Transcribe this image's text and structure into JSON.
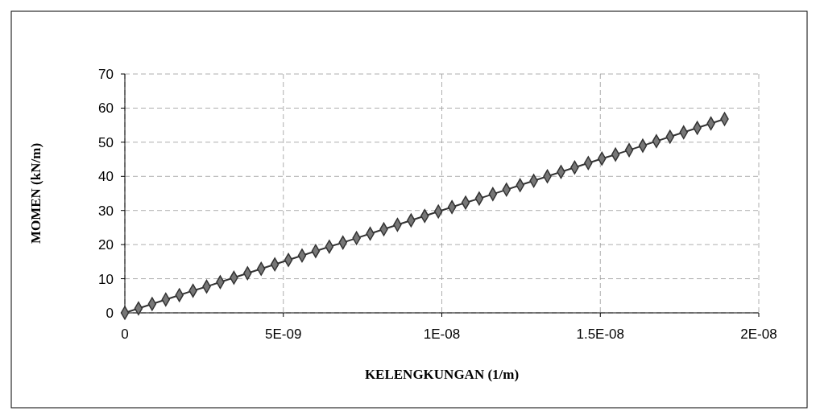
{
  "chart_data": {
    "type": "line",
    "xlabel": "KELENGKUNGAN (1/m)",
    "ylabel": "MOMEN (kN/m)",
    "x": [
      0,
      4.3e-10,
      8.6e-10,
      1.29e-09,
      1.72e-09,
      2.15e-09,
      2.58e-09,
      3.01e-09,
      3.44e-09,
      3.87e-09,
      4.3e-09,
      4.73e-09,
      5.16e-09,
      5.59e-09,
      6.02e-09,
      6.45e-09,
      6.88e-09,
      7.31e-09,
      7.74e-09,
      8.17e-09,
      8.6e-09,
      9.03e-09,
      9.46e-09,
      9.89e-09,
      1.032e-08,
      1.075e-08,
      1.118e-08,
      1.161e-08,
      1.204e-08,
      1.247e-08,
      1.29e-08,
      1.333e-08,
      1.376e-08,
      1.419e-08,
      1.462e-08,
      1.505e-08,
      1.548e-08,
      1.591e-08,
      1.634e-08,
      1.677e-08,
      1.72e-08,
      1.763e-08,
      1.806e-08,
      1.849e-08,
      1.892e-08
    ],
    "series": [
      {
        "color": "#333333",
        "values": [
          0,
          1.3,
          2.6,
          3.9,
          5.2,
          6.5,
          7.7,
          9,
          10.3,
          11.6,
          12.9,
          14.2,
          15.5,
          16.8,
          18.1,
          19.4,
          20.6,
          21.9,
          23.2,
          24.5,
          25.8,
          27.1,
          28.4,
          29.7,
          31,
          32.3,
          33.5,
          34.8,
          36.1,
          37.4,
          38.7,
          40,
          41.3,
          42.6,
          43.9,
          45.2,
          46.4,
          47.7,
          49,
          50.3,
          51.6,
          52.9,
          54.2,
          55.5,
          56.8
        ]
      }
    ],
    "xlim": [
      0,
      2e-08
    ],
    "xticks": [
      0,
      {
        "value": 5e-09,
        "label": "5E-09"
      },
      {
        "value": 1e-08,
        "label": "1E-08"
      },
      {
        "value": 1.5e-08,
        "label": "1.5E-08"
      },
      {
        "value": 2e-08,
        "label": "2E-08"
      }
    ],
    "ylim": [
      0,
      70
    ],
    "yticks": [
      0,
      10,
      20,
      30,
      40,
      50,
      60,
      70
    ],
    "grid": true,
    "marker": "diamond",
    "line_style": "solid"
  }
}
